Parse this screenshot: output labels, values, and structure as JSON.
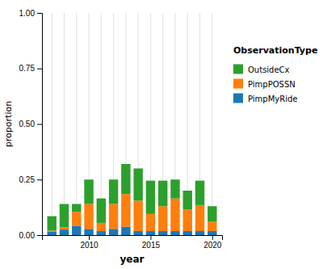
{
  "chart_data": {
    "type": "bar",
    "stacked": true,
    "title": "ObservationType",
    "xlabel": "year",
    "ylabel": "proportion",
    "x": [
      2007,
      2008,
      2009,
      2010,
      2011,
      2012,
      2013,
      2014,
      2015,
      2016,
      2017,
      2018,
      2019,
      2020
    ],
    "series": [
      {
        "name": "PimpMyRide",
        "values": [
          0.015,
          0.025,
          0.042,
          0.028,
          0.018,
          0.028,
          0.038,
          0.018,
          0.018,
          0.018,
          0.018,
          0.018,
          0.018,
          0.018
        ]
      },
      {
        "name": "PimpPOSSN",
        "values": [
          0.005,
          0.01,
          0.063,
          0.112,
          0.037,
          0.112,
          0.147,
          0.137,
          0.077,
          0.112,
          0.147,
          0.097,
          0.117,
          0.042
        ]
      },
      {
        "name": "OutsideCx",
        "values": [
          0.065,
          0.105,
          0.035,
          0.11,
          0.11,
          0.11,
          0.135,
          0.145,
          0.15,
          0.115,
          0.085,
          0.085,
          0.11,
          0.07
        ]
      }
    ],
    "xlim": [
      2006.2,
      2020.8
    ],
    "xticks": [
      2010,
      2015,
      2020
    ],
    "ylim": [
      0,
      1.0
    ],
    "yticks": [
      {
        "value": 0,
        "label": "0.00"
      },
      {
        "value": 0.25,
        "label": "0.25"
      },
      {
        "value": 0.5,
        "label": "0.50"
      },
      {
        "value": 0.75,
        "label": "0.75"
      },
      {
        "value": 1.0,
        "label": "1.00"
      }
    ],
    "grid": true,
    "legend": "right"
  }
}
